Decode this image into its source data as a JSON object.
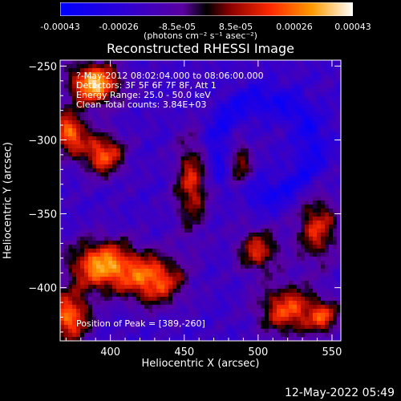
{
  "chart_data": {
    "type": "heatmap",
    "title": "Reconstructed RHESSI Image",
    "xlabel": "Heliocentric X (arcsec)",
    "ylabel": "Heliocentric Y (arcsec)",
    "xlim": [
      366,
      556
    ],
    "ylim": [
      -436,
      -246
    ],
    "xticks": [
      400,
      450,
      500,
      550
    ],
    "yticks": [
      -250,
      -300,
      -350,
      -400
    ],
    "colorbar": {
      "ticks": [
        "-0.00043",
        "-0.00026",
        "-8.5e-05",
        "8.5e-05",
        "0.00026",
        "0.00043"
      ],
      "units": "(photons cm⁻² s⁻¹ asec⁻²)",
      "range": [
        -0.00043,
        0.00043
      ]
    },
    "annotations": {
      "time_range": "?-May-2012 08:02:04.000 to 08:06:00.000",
      "detectors": "Detectors: 3F 5F 6F 7F 8F, Att 1",
      "energy_range": "Energy Range: 25.0 - 50.0 keV",
      "clean_counts": "Clean     Total counts: 3.84E+03",
      "peak": "Position of Peak = [389,-260]"
    },
    "peak": [
      389,
      -260
    ],
    "sources": [
      {
        "x": 389,
        "y": -262,
        "amp": 1.0,
        "sx": 12,
        "sy": 10
      },
      {
        "x": 372,
        "y": -295,
        "amp": 0.8,
        "sx": 8,
        "sy": 10
      },
      {
        "x": 395,
        "y": -310,
        "amp": 0.75,
        "sx": 10,
        "sy": 10
      },
      {
        "x": 395,
        "y": -385,
        "amp": 0.9,
        "sx": 16,
        "sy": 12
      },
      {
        "x": 372,
        "y": -420,
        "amp": 0.8,
        "sx": 10,
        "sy": 12
      },
      {
        "x": 430,
        "y": -395,
        "amp": 0.75,
        "sx": 14,
        "sy": 12
      },
      {
        "x": 455,
        "y": -330,
        "amp": 0.6,
        "sx": 8,
        "sy": 22
      },
      {
        "x": 487,
        "y": -320,
        "amp": 0.55,
        "sx": 6,
        "sy": 14
      },
      {
        "x": 500,
        "y": -375,
        "amp": 0.6,
        "sx": 10,
        "sy": 10
      },
      {
        "x": 520,
        "y": -415,
        "amp": 0.7,
        "sx": 14,
        "sy": 12
      },
      {
        "x": 540,
        "y": -360,
        "amp": 0.6,
        "sx": 10,
        "sy": 16
      },
      {
        "x": 545,
        "y": -420,
        "amp": 0.55,
        "sx": 8,
        "sy": 8
      }
    ]
  },
  "footer": {
    "timestamp": "12-May-2022 05:49"
  }
}
